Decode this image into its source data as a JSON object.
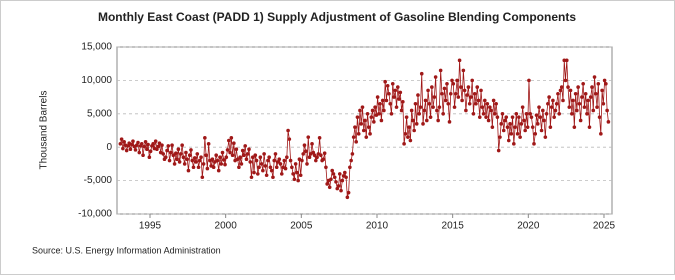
{
  "chart_data": {
    "type": "line",
    "title": "Monthly East Coast (PADD 1) Supply Adjustment of Gasoline Blending Components",
    "y_label": "Thousand Barrels",
    "source": "Source: U.S. Energy Information Administration",
    "color": "#a01818",
    "grid": true,
    "xlim": [
      1992.82,
      2025.53
    ],
    "xticks": [
      1995,
      2000,
      2005,
      2010,
      2015,
      2020,
      2025
    ],
    "ylim": [
      -10000,
      15000
    ],
    "yticks": [
      {
        "value": -10000,
        "label": "-10,000"
      },
      {
        "value": -5000,
        "label": "-5,000"
      },
      0,
      {
        "value": 5000,
        "label": "5,000"
      },
      {
        "value": 10000,
        "label": "10,000"
      },
      {
        "value": 15000,
        "label": "15,000"
      }
    ],
    "x": [
      1993.042,
      1993.125,
      1993.208,
      1993.292,
      1993.375,
      1993.458,
      1993.542,
      1993.625,
      1993.708,
      1993.792,
      1993.875,
      1993.958,
      1994.042,
      1994.125,
      1994.208,
      1994.292,
      1994.375,
      1994.458,
      1994.542,
      1994.625,
      1994.708,
      1994.792,
      1994.875,
      1994.958,
      1995.042,
      1995.125,
      1995.208,
      1995.292,
      1995.375,
      1995.458,
      1995.542,
      1995.625,
      1995.708,
      1995.792,
      1995.875,
      1995.958,
      1996.042,
      1996.125,
      1996.208,
      1996.292,
      1996.375,
      1996.458,
      1996.542,
      1996.625,
      1996.708,
      1996.792,
      1996.875,
      1996.958,
      1997.042,
      1997.125,
      1997.208,
      1997.292,
      1997.375,
      1997.458,
      1997.542,
      1997.625,
      1997.708,
      1997.792,
      1997.875,
      1997.958,
      1998.042,
      1998.125,
      1998.208,
      1998.292,
      1998.375,
      1998.458,
      1998.542,
      1998.625,
      1998.708,
      1998.792,
      1998.875,
      1998.958,
      1999.042,
      1999.125,
      1999.208,
      1999.292,
      1999.375,
      1999.458,
      1999.542,
      1999.625,
      1999.708,
      1999.792,
      1999.875,
      1999.958,
      2000.042,
      2000.125,
      2000.208,
      2000.292,
      2000.375,
      2000.458,
      2000.542,
      2000.625,
      2000.708,
      2000.792,
      2000.875,
      2000.958,
      2001.042,
      2001.125,
      2001.208,
      2001.292,
      2001.375,
      2001.458,
      2001.542,
      2001.625,
      2001.708,
      2001.792,
      2001.875,
      2001.958,
      2002.042,
      2002.125,
      2002.208,
      2002.292,
      2002.375,
      2002.458,
      2002.542,
      2002.625,
      2002.708,
      2002.792,
      2002.875,
      2002.958,
      2003.042,
      2003.125,
      2003.208,
      2003.292,
      2003.375,
      2003.458,
      2003.542,
      2003.625,
      2003.708,
      2003.792,
      2003.875,
      2003.958,
      2004.042,
      2004.125,
      2004.208,
      2004.292,
      2004.375,
      2004.458,
      2004.542,
      2004.625,
      2004.708,
      2004.792,
      2004.875,
      2004.958,
      2005.042,
      2005.125,
      2005.208,
      2005.292,
      2005.375,
      2005.458,
      2005.542,
      2005.625,
      2005.708,
      2005.792,
      2005.875,
      2005.958,
      2006.042,
      2006.125,
      2006.208,
      2006.292,
      2006.375,
      2006.458,
      2006.542,
      2006.625,
      2006.708,
      2006.792,
      2006.875,
      2006.958,
      2007.042,
      2007.125,
      2007.208,
      2007.292,
      2007.375,
      2007.458,
      2007.542,
      2007.625,
      2007.708,
      2007.792,
      2007.875,
      2007.958,
      2008.042,
      2008.125,
      2008.208,
      2008.292,
      2008.375,
      2008.458,
      2008.542,
      2008.625,
      2008.708,
      2008.792,
      2008.875,
      2008.958,
      2009.042,
      2009.125,
      2009.208,
      2009.292,
      2009.375,
      2009.458,
      2009.542,
      2009.625,
      2009.708,
      2009.792,
      2009.875,
      2009.958,
      2010.042,
      2010.125,
      2010.208,
      2010.292,
      2010.375,
      2010.458,
      2010.542,
      2010.625,
      2010.708,
      2010.792,
      2010.875,
      2010.958,
      2011.042,
      2011.125,
      2011.208,
      2011.292,
      2011.375,
      2011.458,
      2011.542,
      2011.625,
      2011.708,
      2011.792,
      2011.875,
      2011.958,
      2012.042,
      2012.125,
      2012.208,
      2012.292,
      2012.375,
      2012.458,
      2012.542,
      2012.625,
      2012.708,
      2012.792,
      2012.875,
      2012.958,
      2013.042,
      2013.125,
      2013.208,
      2013.292,
      2013.375,
      2013.458,
      2013.542,
      2013.625,
      2013.708,
      2013.792,
      2013.875,
      2013.958,
      2014.042,
      2014.125,
      2014.208,
      2014.292,
      2014.375,
      2014.458,
      2014.542,
      2014.625,
      2014.708,
      2014.792,
      2014.875,
      2014.958,
      2015.042,
      2015.125,
      2015.208,
      2015.292,
      2015.375,
      2015.458,
      2015.542,
      2015.625,
      2015.708,
      2015.792,
      2015.875,
      2015.958,
      2016.042,
      2016.125,
      2016.208,
      2016.292,
      2016.375,
      2016.458,
      2016.542,
      2016.625,
      2016.708,
      2016.792,
      2016.875,
      2016.958,
      2017.042,
      2017.125,
      2017.208,
      2017.292,
      2017.375,
      2017.458,
      2017.542,
      2017.625,
      2017.708,
      2017.792,
      2017.875,
      2017.958,
      2018.042,
      2018.125,
      2018.208,
      2018.292,
      2018.375,
      2018.458,
      2018.542,
      2018.625,
      2018.708,
      2018.792,
      2018.875,
      2018.958,
      2019.042,
      2019.125,
      2019.208,
      2019.292,
      2019.375,
      2019.458,
      2019.542,
      2019.625,
      2019.708,
      2019.792,
      2019.875,
      2019.958,
      2020.042,
      2020.125,
      2020.208,
      2020.292,
      2020.375,
      2020.458,
      2020.542,
      2020.625,
      2020.708,
      2020.792,
      2020.875,
      2020.958,
      2021.042,
      2021.125,
      2021.208,
      2021.292,
      2021.375,
      2021.458,
      2021.542,
      2021.625,
      2021.708,
      2021.792,
      2021.875,
      2021.958,
      2022.042,
      2022.125,
      2022.208,
      2022.292,
      2022.375,
      2022.458,
      2022.542,
      2022.625,
      2022.708,
      2022.792,
      2022.875,
      2022.958,
      2023.042,
      2023.125,
      2023.208,
      2023.292,
      2023.375,
      2023.458,
      2023.542,
      2023.625,
      2023.708,
      2023.792,
      2023.875,
      2023.958,
      2024.042,
      2024.125,
      2024.208,
      2024.292,
      2024.375,
      2024.458,
      2024.542,
      2024.625,
      2024.708,
      2024.792,
      2024.875,
      2024.958,
      2025.042,
      2025.125,
      2025.208,
      2025.292
    ],
    "values": [
      500,
      1200,
      -200,
      800,
      300,
      -500,
      200,
      600,
      -300,
      400,
      900,
      100,
      -400,
      300,
      700,
      -800,
      200,
      500,
      -1200,
      100,
      800,
      -300,
      400,
      -1500,
      -600,
      200,
      500,
      -200,
      900,
      -300,
      100,
      600,
      -800,
      300,
      -1000,
      -1800,
      -1500,
      -500,
      200,
      -2000,
      -800,
      300,
      -1200,
      -2500,
      -900,
      -1800,
      -300,
      -2200,
      -1000,
      300,
      -1500,
      -2500,
      -800,
      -1800,
      -3500,
      -1200,
      -400,
      -2000,
      -3000,
      -1600,
      -2200,
      -1000,
      -3000,
      -2000,
      -1500,
      -4500,
      -2500,
      1400,
      -1200,
      -3200,
      500,
      -2000,
      -2800,
      -1800,
      -3000,
      -2200,
      -1200,
      -2000,
      -3500,
      -1500,
      -2500,
      -800,
      -1900,
      -2600,
      -1500,
      -400,
      1000,
      -800,
      1400,
      -1200,
      600,
      -2000,
      -300,
      -1800,
      -3000,
      -1500,
      -2500,
      -500,
      -1200,
      200,
      -1800,
      -1000,
      -300,
      -2200,
      -4500,
      -1500,
      -3800,
      -1200,
      -2000,
      -4000,
      -3000,
      -1500,
      -2500,
      -3500,
      -1000,
      -2800,
      -4200,
      -2000,
      -1500,
      -3000,
      -3500,
      -4500,
      -2000,
      -1000,
      -3000,
      -2200,
      -1800,
      -2500,
      -4000,
      -3000,
      -2000,
      -3200,
      -1500,
      2500,
      1200,
      -2000,
      -3000,
      -4000,
      -4800,
      -2500,
      -3800,
      -5000,
      -1800,
      -4200,
      -2000,
      -1000,
      300,
      -600,
      -2500,
      1500,
      -1500,
      -1000,
      500,
      -800,
      -1200,
      -2000,
      -1500,
      -1000,
      1400,
      -1200,
      -2000,
      -1800,
      -900,
      -3000,
      -5500,
      -5000,
      -6000,
      -4800,
      -3500,
      -4000,
      -4500,
      -5200,
      -6200,
      -5800,
      -4000,
      -6500,
      -5000,
      -4300,
      -3800,
      -4500,
      -7500,
      -6800,
      -3000,
      -2000,
      -1000,
      1500,
      3000,
      800,
      4500,
      2000,
      5500,
      3500,
      6000,
      2500,
      4000,
      1500,
      5000,
      3000,
      2000,
      4500,
      5500,
      3800,
      6000,
      4800,
      7500,
      5000,
      6500,
      4000,
      7000,
      5500,
      9800,
      7000,
      9200,
      8000,
      6500,
      5000,
      9500,
      7500,
      8500,
      6000,
      9000,
      7200,
      8200,
      5500,
      6800,
      500,
      2000,
      4500,
      1500,
      3000,
      1000,
      5500,
      4000,
      2500,
      6500,
      3500,
      7800,
      5000,
      6000,
      11000,
      3500,
      5500,
      7000,
      4000,
      8500,
      6500,
      4500,
      9000,
      6000,
      7500,
      10500,
      5500,
      4000,
      6000,
      11500,
      8000,
      5000,
      8800,
      7000,
      9500,
      6500,
      3800,
      8000,
      10000,
      9500,
      6000,
      8000,
      10000,
      7500,
      13000,
      9000,
      7000,
      11500,
      8500,
      5500,
      7800,
      9000,
      6500,
      7500,
      10000,
      5000,
      8000,
      6500,
      9000,
      7000,
      4500,
      8500,
      6000,
      5000,
      7000,
      4500,
      6500,
      4000,
      6000,
      5500,
      3000,
      7000,
      5000,
      6500,
      4500,
      -500,
      1500,
      3500,
      5000,
      2500,
      4000,
      4500,
      3000,
      1000,
      3500,
      2000,
      4500,
      500,
      3000,
      5000,
      2000,
      4500,
      1500,
      3500,
      6000,
      4000,
      2500,
      5000,
      3000,
      10000,
      5000,
      4500,
      3000,
      500,
      2000,
      4800,
      3500,
      6000,
      4500,
      2500,
      5500,
      4000,
      1500,
      5000,
      6500,
      7500,
      3000,
      6000,
      7000,
      4500,
      5500,
      6500,
      8000,
      5000,
      8500,
      9000,
      7000,
      13000,
      10000,
      13000,
      9000,
      6000,
      8500,
      5000,
      7000,
      3000,
      8000,
      5500,
      9000,
      6500,
      4000,
      7500,
      9500,
      6000,
      8000,
      5000,
      7000,
      3000,
      7500,
      9000,
      5500,
      10500,
      8000,
      6000,
      9500,
      4500,
      2000,
      8500,
      6500,
      10000,
      9500,
      5500,
      3800
    ]
  }
}
